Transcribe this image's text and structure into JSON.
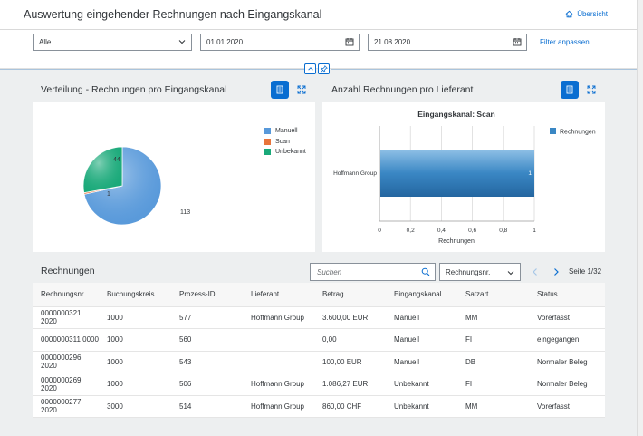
{
  "header": {
    "title": "Auswertung eingehender Rechnungen nach Eingangskanal",
    "overview_label": "Übersicht"
  },
  "filters": {
    "channel_value": "Alle",
    "date_from": "01.01.2020",
    "date_to": "21.08.2020",
    "adjust_label": "Filter anpassen"
  },
  "left_card": {
    "title": "Verteilung - Rechnungen pro Eingangskanal"
  },
  "right_card": {
    "title": "Anzahl Rechnungen pro Lieferant"
  },
  "chart_data": [
    {
      "type": "pie",
      "categories": [
        "Manuell",
        "Scan",
        "Unbekannt"
      ],
      "values": [
        113,
        1,
        44
      ],
      "colors": [
        "#5899da",
        "#e8743b",
        "#19a979"
      ],
      "legend_position": "top-right"
    },
    {
      "type": "bar",
      "orientation": "horizontal",
      "title": "Eingangskanal: Scan",
      "categories": [
        "Hoffmann Group"
      ],
      "series": [
        {
          "name": "Rechnungen",
          "values": [
            1
          ]
        }
      ],
      "xlabel": "Rechnungen",
      "xlim": [
        0,
        1
      ],
      "ticks": [
        "0",
        "0,2",
        "0,4",
        "0,6",
        "0,8",
        "1"
      ],
      "color": "#3a87c4",
      "legend_position": "top-right",
      "grid": true
    }
  ],
  "table": {
    "title": "Rechnungen",
    "search_placeholder": "Suchen",
    "sort_value": "Rechnungsnr.",
    "page_label": "Seite 1/32",
    "columns": [
      "Rechnungsnr",
      "Buchungskreis",
      "Prozess-ID",
      "Lieferant",
      "Betrag",
      "Eingangskanal",
      "Satzart",
      "Status"
    ],
    "rows": [
      [
        "0000000321 2020",
        "1000",
        "577",
        "Hoffmann Group",
        "3.600,00 EUR",
        "Manuell",
        "MM",
        "Vorerfasst"
      ],
      [
        "0000000311 0000",
        "1000",
        "560",
        "",
        "0,00",
        "Manuell",
        "FI",
        "eingegangen"
      ],
      [
        "0000000296 2020",
        "1000",
        "543",
        "",
        "100,00 EUR",
        "Manuell",
        "DB",
        "Normaler Beleg"
      ],
      [
        "0000000269 2020",
        "1000",
        "506",
        "Hoffmann Group",
        "1.086,27 EUR",
        "Unbekannt",
        "FI",
        "Normaler Beleg"
      ],
      [
        "0000000277 2020",
        "3000",
        "514",
        "Hoffmann Group",
        "860,00 CHF",
        "Unbekannt",
        "MM",
        "Vorerfasst"
      ]
    ]
  }
}
